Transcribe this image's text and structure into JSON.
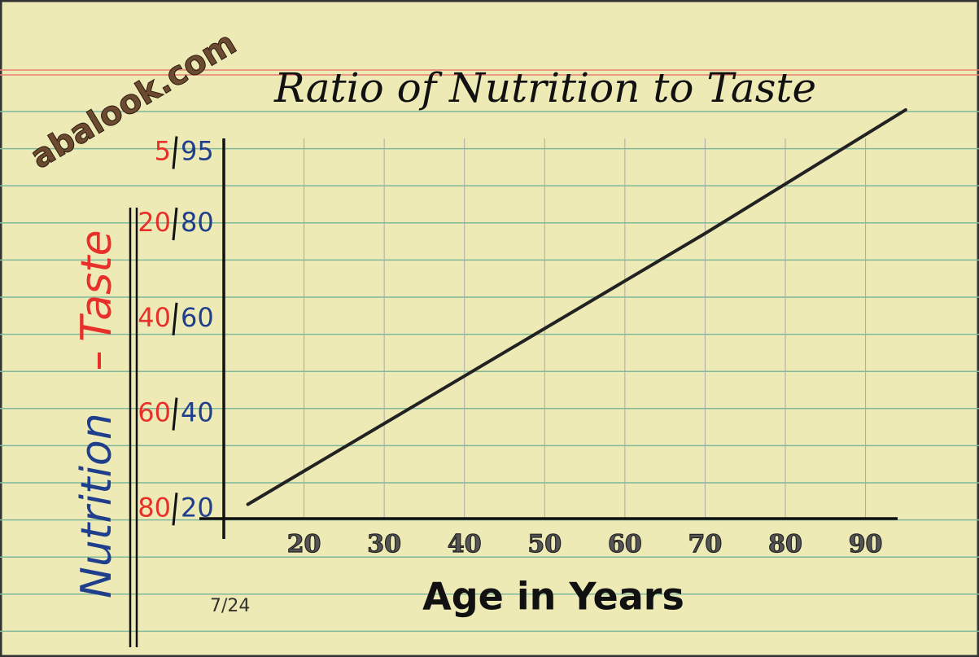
{
  "chart_data": {
    "type": "line",
    "title": "Ratio of Nutrition to Taste",
    "watermark": "abalook.com",
    "xlabel": "Age in Years",
    "ylabel": "Nutrition",
    "y2label": "Taste",
    "signature_date": "7/24",
    "x": [
      13,
      30,
      50,
      70,
      95
    ],
    "values": [
      21,
      38,
      58,
      78,
      104
    ],
    "color": "#222222",
    "xlim": [
      10,
      94
    ],
    "xticks": [
      20,
      30,
      40,
      50,
      60,
      70,
      80,
      90
    ],
    "ylim": [
      18,
      98
    ],
    "yticks": [
      95,
      80,
      60,
      40,
      20
    ],
    "y2lim": [
      82,
      2
    ],
    "y2ticks": [
      5,
      20,
      40,
      60,
      80
    ],
    "ycolor": "#1f3e8c",
    "y2color": "#e8302a",
    "grid": true
  }
}
